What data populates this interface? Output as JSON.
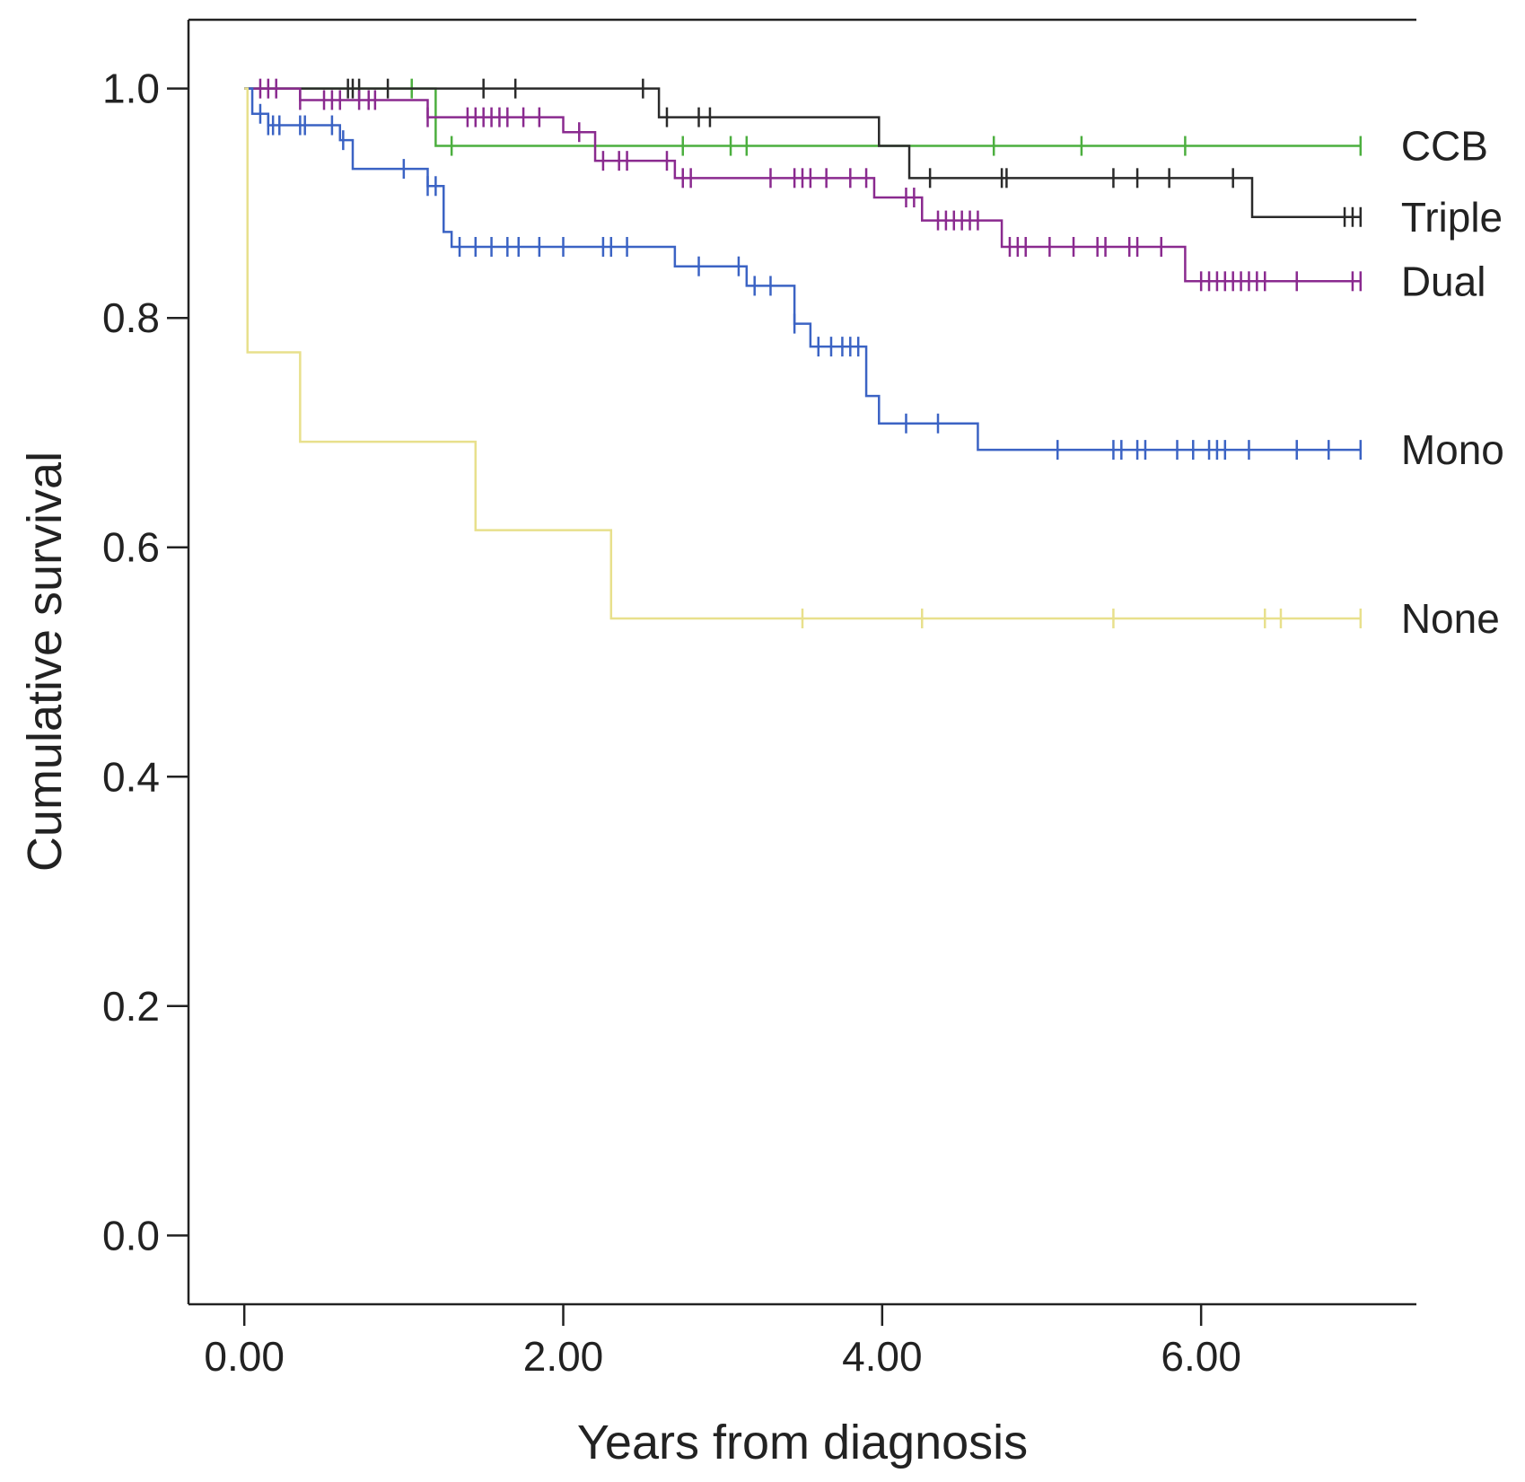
{
  "chart_data": {
    "type": "line",
    "subtype": "kaplan-meier step",
    "title": "",
    "xlabel": "Years from diagnosis",
    "ylabel": "Cumulative survival",
    "xlim": [
      -0.35,
      7.35
    ],
    "ylim": [
      -0.06,
      1.06
    ],
    "xticks": [
      0,
      2,
      4,
      6
    ],
    "xtick_labels": [
      "0.00",
      "2.00",
      "4.00",
      "6.00"
    ],
    "yticks": [
      0,
      0.2,
      0.4,
      0.6,
      0.8,
      1.0
    ],
    "ytick_labels": [
      "0.0",
      "0.2",
      "0.4",
      "0.6",
      "0.8",
      "1.0"
    ],
    "grid": false,
    "legend": "inline labels at right end of curves",
    "series": [
      {
        "name": "CCB",
        "color": "#4caf3f",
        "steps": [
          [
            0,
            1.0
          ],
          [
            1.2,
            0.95
          ]
        ],
        "end_x": 7.0,
        "censored": [
          1.05,
          1.3,
          2.75,
          3.05,
          3.15,
          4.7,
          5.25,
          5.9,
          7.0
        ]
      },
      {
        "name": "Triple",
        "color": "#2a2a2a",
        "steps": [
          [
            0,
            1.0
          ],
          [
            2.6,
            0.975
          ],
          [
            3.98,
            0.95
          ],
          [
            4.17,
            0.922
          ],
          [
            6.32,
            0.888
          ]
        ],
        "end_x": 7.0,
        "censored": [
          0.65,
          0.68,
          0.72,
          0.9,
          1.5,
          1.7,
          2.5,
          2.65,
          2.85,
          2.92,
          4.3,
          4.75,
          4.78,
          5.45,
          5.6,
          5.8,
          6.2,
          6.9,
          6.95,
          7.0
        ]
      },
      {
        "name": "Dual",
        "color": "#8a2a8f",
        "steps": [
          [
            0,
            1.0
          ],
          [
            0.35,
            0.99
          ],
          [
            1.15,
            0.975
          ],
          [
            2.0,
            0.962
          ],
          [
            2.2,
            0.937
          ],
          [
            2.7,
            0.922
          ],
          [
            3.95,
            0.905
          ],
          [
            4.25,
            0.885
          ],
          [
            4.75,
            0.862
          ],
          [
            5.9,
            0.832
          ]
        ],
        "end_x": 7.0,
        "censored": [
          0.1,
          0.15,
          0.2,
          0.35,
          0.5,
          0.55,
          0.6,
          0.72,
          0.78,
          0.82,
          1.15,
          1.4,
          1.45,
          1.5,
          1.55,
          1.6,
          1.65,
          1.75,
          1.85,
          2.1,
          2.25,
          2.35,
          2.4,
          2.65,
          2.75,
          2.8,
          3.3,
          3.45,
          3.5,
          3.55,
          3.65,
          3.8,
          3.9,
          4.15,
          4.2,
          4.35,
          4.4,
          4.45,
          4.5,
          4.55,
          4.6,
          4.8,
          4.85,
          4.9,
          5.05,
          5.2,
          5.35,
          5.4,
          5.55,
          5.6,
          5.75,
          6.0,
          6.05,
          6.1,
          6.15,
          6.2,
          6.25,
          6.3,
          6.35,
          6.4,
          6.6,
          6.95,
          7.0
        ]
      },
      {
        "name": "Mono",
        "color": "#3b63c4",
        "steps": [
          [
            0,
            1.0
          ],
          [
            0.05,
            0.978
          ],
          [
            0.15,
            0.968
          ],
          [
            0.6,
            0.955
          ],
          [
            0.68,
            0.93
          ],
          [
            1.15,
            0.915
          ],
          [
            1.25,
            0.875
          ],
          [
            1.3,
            0.862
          ],
          [
            2.7,
            0.845
          ],
          [
            3.15,
            0.828
          ],
          [
            3.45,
            0.795
          ],
          [
            3.55,
            0.775
          ],
          [
            3.9,
            0.732
          ],
          [
            3.98,
            0.708
          ],
          [
            4.6,
            0.685
          ]
        ],
        "end_x": 7.0,
        "censored": [
          0.1,
          0.15,
          0.18,
          0.22,
          0.35,
          0.38,
          0.55,
          0.62,
          1.0,
          1.15,
          1.2,
          1.35,
          1.45,
          1.55,
          1.65,
          1.72,
          1.85,
          2.0,
          2.25,
          2.3,
          2.4,
          2.85,
          3.1,
          3.2,
          3.3,
          3.45,
          3.6,
          3.68,
          3.75,
          3.8,
          3.85,
          4.15,
          4.35,
          5.1,
          5.45,
          5.5,
          5.6,
          5.65,
          5.85,
          5.95,
          6.05,
          6.1,
          6.15,
          6.3,
          6.6,
          6.8,
          7.0
        ]
      },
      {
        "name": "None",
        "color": "#e8e08c",
        "steps": [
          [
            0,
            1.0
          ],
          [
            0.02,
            0.77
          ],
          [
            0.35,
            0.692
          ],
          [
            1.45,
            0.615
          ],
          [
            2.3,
            0.538
          ]
        ],
        "end_x": 7.0,
        "censored": [
          3.5,
          4.25,
          5.45,
          6.4,
          6.5,
          7.0
        ]
      }
    ]
  }
}
